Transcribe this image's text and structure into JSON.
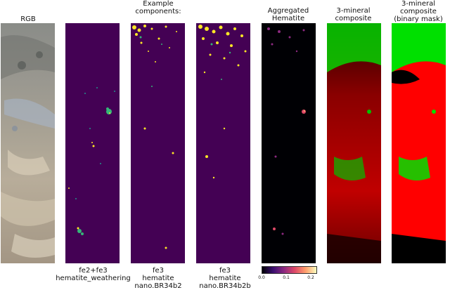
{
  "panels": [
    {
      "id": "rgb",
      "title": "RGB",
      "caption": ""
    },
    {
      "id": "fe2fe3",
      "title": "",
      "caption": "fe2+fe3\nhematite_weathering"
    },
    {
      "id": "br34b2",
      "title": "",
      "caption": "fe3\nhematite\nnano.BR34b2"
    },
    {
      "id": "br34b2b",
      "title": "",
      "caption": "fe3\nhematite\nnano.BR34b2b"
    },
    {
      "id": "aggregated",
      "title": "Aggregated\nHematite",
      "caption": ""
    },
    {
      "id": "composite",
      "title": "3-mineral\ncomposite",
      "caption": ""
    },
    {
      "id": "mask",
      "title": "3-mineral\ncomposite\n(binary mask)",
      "caption": ""
    }
  ],
  "group_title": "Example\ncomponents:",
  "colorbar": {
    "ticks": [
      "0.0",
      "0.1",
      "0.2"
    ],
    "range": [
      0.0,
      0.22
    ],
    "colormap": "magma"
  },
  "colors": {
    "viridis_bg": "#440154",
    "viridis_yellow": "#fde725",
    "viridis_green": "#35b779",
    "viridis_teal": "#21918c",
    "composite_red": "#ff0000",
    "composite_green": "#00e000"
  }
}
